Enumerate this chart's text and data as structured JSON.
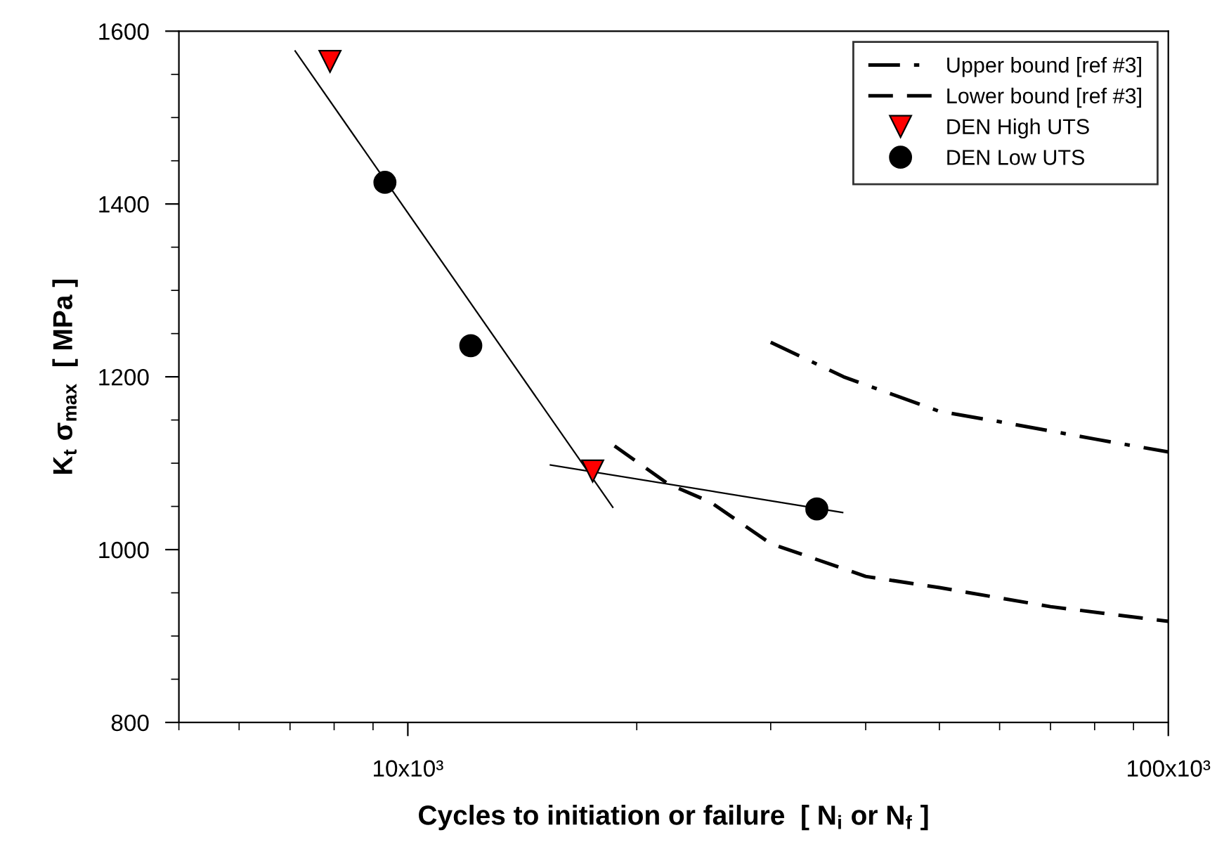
{
  "chart_data": {
    "type": "scatter",
    "xlabel": "Cycles to initiation or failure  [ N$_{i}$ or N$_{f}$ ]",
    "ylabel": "K$_{t}$ σ$_{max}$  [ MPa ]",
    "log": "x",
    "xlim": [
      5000,
      100000
    ],
    "xticks": [
      {
        "value": 10000,
        "label": "10x10³"
      },
      {
        "value": 100000,
        "label": "100x10³"
      }
    ],
    "ylim": [
      800,
      1600
    ],
    "yticks": [
      800,
      1000,
      1200,
      1400,
      1600
    ],
    "grid": false,
    "legend": "top right",
    "series": [
      {
        "name": "Upper bound [ref #3]",
        "type": "line",
        "line_style": "dashdot",
        "marker": "none",
        "color": "#000000",
        "x": [
          30000,
          37400,
          50000,
          60000,
          80000,
          100000
        ],
        "values": [
          1240,
          1200,
          1160,
          1148,
          1128,
          1113
        ]
      },
      {
        "name": "Lower bound [ref #3]",
        "type": "line",
        "line_style": "dashed",
        "marker": "none",
        "color": "#000000",
        "x": [
          18700,
          22000,
          25000,
          30000,
          40000,
          50000,
          70000,
          100000
        ],
        "values": [
          1120,
          1076,
          1055,
          1007,
          969,
          956,
          934,
          917
        ]
      },
      {
        "name": "DEN High UTS",
        "marker": "triangle",
        "color": "#ff0000",
        "x": [
          7900,
          17500
        ],
        "values": [
          1565,
          1091
        ]
      },
      {
        "name": "DEN Low UTS",
        "marker": "circle",
        "color": "#000000",
        "x": [
          9330,
          12100,
          34500
        ],
        "values": [
          1425,
          1236,
          1047
        ]
      },
      {
        "type": "line",
        "line_style": "solid",
        "marker": "none",
        "color": "#000000",
        "x": [
          7110,
          18600
        ],
        "values": [
          1577,
          1049
        ]
      },
      {
        "type": "line",
        "line_style": "solid",
        "marker": "none",
        "color": "#000000",
        "x": [
          15400,
          37300
        ],
        "values": [
          1098,
          1043
        ]
      }
    ]
  }
}
